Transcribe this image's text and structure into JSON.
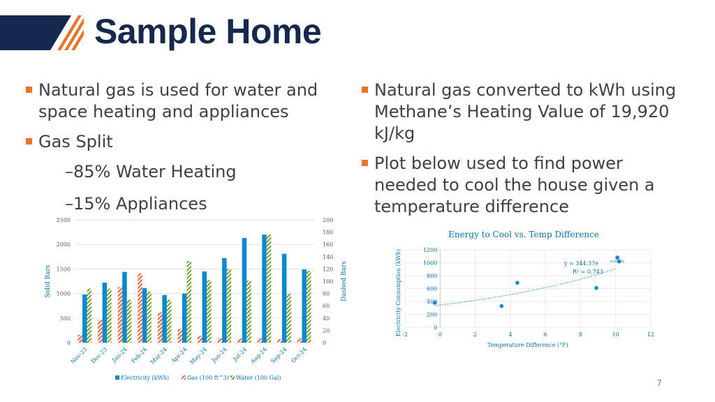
{
  "slide": {
    "title": "Sample Home",
    "page_number": "7",
    "left_bullets": [
      {
        "text": "Natural gas is used for water and space heating and appliances",
        "level": 1
      },
      {
        "text": "Gas Split",
        "level": 1
      },
      {
        "text": "–85% Water Heating",
        "level": 2
      },
      {
        "text": "–15% Appliances",
        "level": 2
      }
    ],
    "right_bullets": [
      {
        "text": "Natural gas converted to kWh using Methane’s Heating Value of 19,920 kJ/kg",
        "level": 1
      },
      {
        "text": "Plot below used to find power needed to cool the house given a temperature difference",
        "level": 1
      }
    ]
  },
  "chart_data": [
    {
      "type": "bar",
      "title": "",
      "categories": [
        "Nov-23",
        "Dec-23",
        "Jan-24",
        "Feb-24",
        "Mar-24",
        "Apr-24",
        "May-24",
        "Jun-24",
        "Jul-24",
        "Aug-24",
        "Sep-24",
        "Oct-24"
      ],
      "series": [
        {
          "name": "Electricity (kWh)",
          "axis": "left",
          "style": "solid",
          "color": "#0a88d1",
          "values": [
            980,
            1220,
            1440,
            1110,
            970,
            1000,
            1450,
            1720,
            2130,
            2200,
            1810,
            1490
          ]
        },
        {
          "name": "Gas (100 ft^3)",
          "axis": "left",
          "style": "dashed",
          "color": "#e8663c",
          "values": [
            160,
            460,
            1130,
            1410,
            620,
            280,
            140,
            90,
            80,
            90,
            70,
            90
          ]
        },
        {
          "name": "Water (100 Gal)",
          "axis": "right",
          "style": "dashed",
          "color": "#6ea530",
          "values": [
            88,
            88,
            70,
            83,
            70,
            133,
            102,
            120,
            101,
            176,
            80,
            117
          ]
        }
      ],
      "ylabel": "Solid Bars",
      "ylabel_right": "Dashed Bars",
      "ylim": [
        0,
        2500
      ],
      "ylim_right": [
        0,
        200
      ],
      "y_ticks": [
        0,
        500,
        1000,
        1500,
        2000,
        2500
      ],
      "y_ticks_right": [
        0,
        20,
        40,
        60,
        80,
        100,
        120,
        140,
        160,
        180,
        200
      ],
      "grid": true,
      "legend": "bottom"
    },
    {
      "type": "scatter",
      "title": "Energy to Cool vs. Temp Difference",
      "xlabel": "Temperature Difference (°F)",
      "ylabel": "Electricity Consumption (kWh)",
      "xlim": [
        -2,
        12
      ],
      "ylim": [
        0,
        1200
      ],
      "x_ticks": [
        -2,
        0,
        2,
        4,
        6,
        8,
        10,
        12
      ],
      "y_ticks": [
        0,
        200,
        400,
        600,
        800,
        1000,
        1200
      ],
      "points": [
        {
          "x": -0.3,
          "y": 380
        },
        {
          "x": 3.5,
          "y": 330
        },
        {
          "x": 4.4,
          "y": 690
        },
        {
          "x": 8.9,
          "y": 610
        },
        {
          "x": 10.1,
          "y": 1080
        },
        {
          "x": 10.2,
          "y": 1020
        }
      ],
      "trendline": {
        "type": "exponential",
        "a": 344.37,
        "b": 0.0967,
        "label": "y = 344.37e",
        "exponent_label": "0.0967x",
        "r2_label": "R² = 0.743"
      },
      "grid": true,
      "color": "#0a88d1"
    }
  ]
}
